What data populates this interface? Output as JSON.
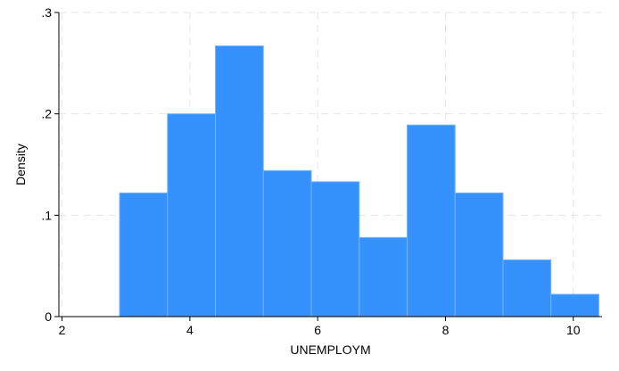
{
  "chart_data": {
    "type": "bar",
    "title": "",
    "xlabel": "UNEMPLOYM",
    "ylabel": "Density",
    "xlim": [
      1.95,
      10.45
    ],
    "ylim": [
      0,
      0.3
    ],
    "grid": true,
    "x_ticks": [
      {
        "value": 2,
        "label": "2"
      },
      {
        "value": 4,
        "label": "4"
      },
      {
        "value": 6,
        "label": "6"
      },
      {
        "value": 8,
        "label": "8"
      },
      {
        "value": 10,
        "label": "10"
      }
    ],
    "y_ticks": [
      {
        "value": 0,
        "label": "0"
      },
      {
        "value": 0.1,
        "label": ".1"
      },
      {
        "value": 0.2,
        "label": ".2"
      },
      {
        "value": 0.3,
        "label": ".3"
      }
    ],
    "bins": [
      {
        "x0": 2.9,
        "x1": 3.65,
        "density": 0.122
      },
      {
        "x0": 3.65,
        "x1": 4.4,
        "density": 0.2
      },
      {
        "x0": 4.4,
        "x1": 5.15,
        "density": 0.267
      },
      {
        "x0": 5.15,
        "x1": 5.9,
        "density": 0.144
      },
      {
        "x0": 5.9,
        "x1": 6.65,
        "density": 0.133
      },
      {
        "x0": 6.65,
        "x1": 7.4,
        "density": 0.078
      },
      {
        "x0": 7.4,
        "x1": 8.15,
        "density": 0.189
      },
      {
        "x0": 8.15,
        "x1": 8.9,
        "density": 0.122
      },
      {
        "x0": 8.9,
        "x1": 9.65,
        "density": 0.056
      },
      {
        "x0": 9.65,
        "x1": 10.4,
        "density": 0.022
      }
    ],
    "colors": {
      "bar_fill": "#3592fd",
      "bar_edge": "#74b4fd",
      "grid": "#e6e6e6",
      "axis": "#000000"
    }
  }
}
